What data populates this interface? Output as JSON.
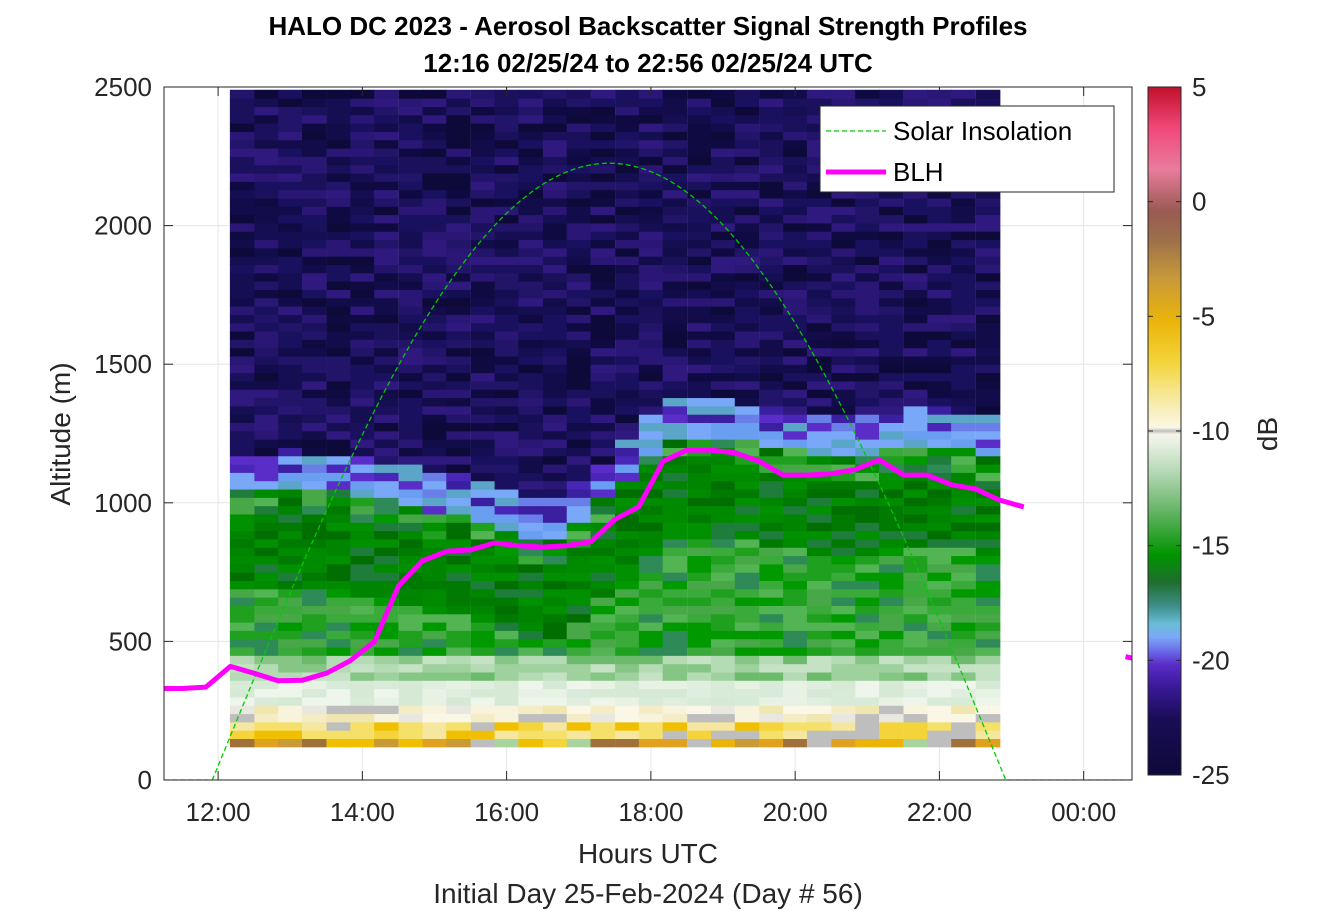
{
  "chart_data": {
    "type": "heatmap",
    "title": "HALO DC 2023 - Aerosol Backscatter Signal Strength Profiles",
    "subtitle": "12:16 02/25/24 to 22:56 02/25/24  UTC",
    "xlabel": "Hours UTC",
    "xlabel2": "Initial Day 25-Feb-2024 (Day # 56)",
    "ylabel": "Altitude (m)",
    "colorbar_label": "dB",
    "xlim": [
      11.25,
      24.67
    ],
    "ylim": [
      0,
      2500
    ],
    "clim": [
      -25,
      5
    ],
    "x_ticks": [
      12,
      14,
      16,
      18,
      20,
      22,
      24
    ],
    "x_tick_labels": [
      "12:00",
      "14:00",
      "16:00",
      "18:00",
      "20:00",
      "22:00",
      "00:00"
    ],
    "y_ticks": [
      0,
      500,
      1000,
      1500,
      2000,
      2500
    ],
    "y_tick_labels": [
      "0",
      "500",
      "1000",
      "1500",
      "2000",
      "2500"
    ],
    "cbar_ticks": [
      5,
      0,
      -5,
      -10,
      -15,
      -20,
      -25
    ],
    "cbar_tick_labels": [
      "5",
      "0",
      "-5",
      "-10",
      "-15",
      "-20",
      "-25"
    ],
    "grid": true,
    "legend_position": "top-right",
    "legend": [
      "Solar Insolation",
      "BLH"
    ],
    "profile_times_hours": [
      12.33,
      12.67,
      13.0,
      13.33,
      13.67,
      14.0,
      14.33,
      14.67,
      15.0,
      15.33,
      15.67,
      16.0,
      16.33,
      16.67,
      17.0,
      17.33,
      17.67,
      18.0,
      18.33,
      18.67,
      19.0,
      19.33,
      19.67,
      20.0,
      20.33,
      20.67,
      21.0,
      21.33,
      21.67,
      22.0,
      22.33,
      22.67
    ],
    "aerosol_top_m": [
      1090,
      1090,
      1095,
      1090,
      1085,
      1080,
      1060,
      1040,
      1020,
      1010,
      990,
      960,
      930,
      930,
      980,
      1060,
      1140,
      1230,
      1280,
      1290,
      1280,
      1270,
      1260,
      1240,
      1230,
      1230,
      1220,
      1240,
      1250,
      1250,
      1240,
      1230
    ],
    "cloud_bottom_m": 100,
    "blh": {
      "name": "BLH",
      "color": "#ff00ff",
      "segments": [
        {
          "x": [
            11.25,
            11.5,
            11.83,
            12.17,
            12.5,
            12.83,
            13.17,
            13.5,
            13.83,
            14.17,
            14.5,
            14.83,
            15.17,
            15.5,
            15.83,
            16.17,
            16.5,
            16.83,
            17.17,
            17.5,
            17.83,
            18.17,
            18.5,
            18.83,
            19.17,
            19.5,
            19.83,
            20.17,
            20.5,
            20.83,
            21.17,
            21.5,
            21.83,
            22.17,
            22.5,
            22.83,
            23.17
          ],
          "y": [
            330,
            330,
            335,
            410,
            385,
            358,
            360,
            385,
            430,
            500,
            700,
            790,
            825,
            830,
            855,
            845,
            840,
            845,
            860,
            940,
            985,
            1150,
            1190,
            1190,
            1180,
            1150,
            1100,
            1100,
            1105,
            1120,
            1155,
            1100,
            1100,
            1065,
            1050,
            1010,
            985
          ]
        },
        {
          "x": [
            24.58,
            24.67
          ],
          "y": [
            445,
            440
          ]
        }
      ]
    },
    "solar_insolation": {
      "name": "Solar Insolation",
      "color": "#00cc00",
      "sunrise_hours": 11.92,
      "sunset_hours": 22.92,
      "peak_m": 2225
    },
    "colormap": [
      "#0d0a3a",
      "#2a1280",
      "#5a2cc8",
      "#6a8ff0",
      "#5aa5c8",
      "#1e7d3a",
      "#009900",
      "#7ec27e",
      "#d8ead8",
      "#fbf7e6",
      "#bebebe",
      "#f5e06a",
      "#f0c000",
      "#e0a020",
      "#a0703a",
      "#8a4a40",
      "#d86a8a",
      "#ff3b6e",
      "#c8142d"
    ]
  }
}
